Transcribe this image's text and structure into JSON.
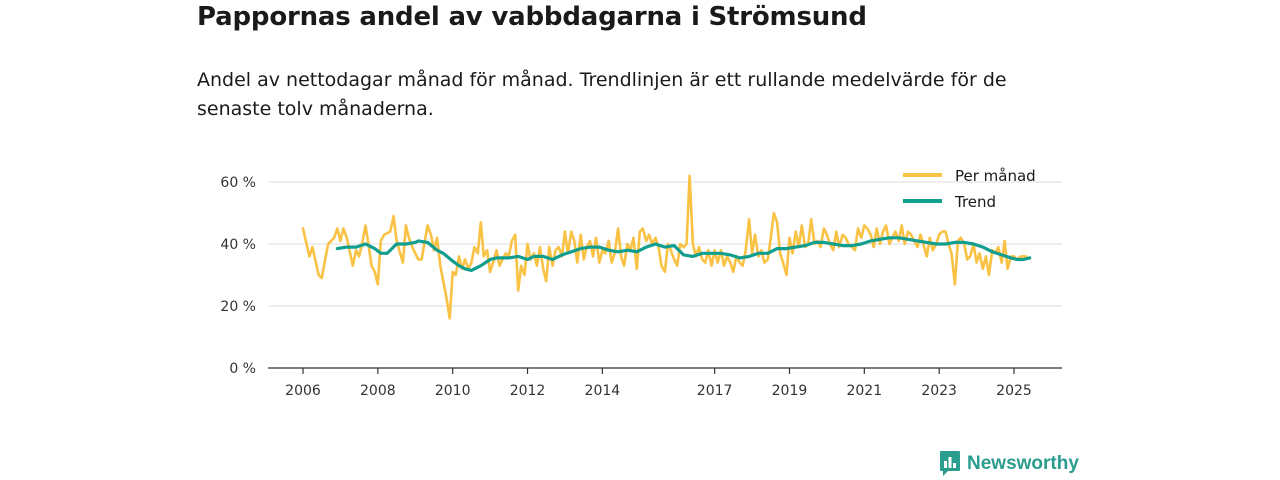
{
  "header": {
    "title": "Pappornas andel av vabbdagarna i Strömsund",
    "subtitle": "Andel av nettodagar månad för månad. Trendlinjen är ett rullande medelvärde för de senaste tolv månaderna."
  },
  "brand": {
    "name": "Newsworthy",
    "icon": "bar-chart-icon",
    "color": "#2a9d8f"
  },
  "chart_data": {
    "type": "line",
    "title": "Pappornas andel av vabbdagarna i Strömsund",
    "xlabel": "",
    "ylabel": "",
    "xlim": [
      2005.5,
      2026.2
    ],
    "ylim": [
      0,
      60
    ],
    "y_ticks": [
      0,
      20,
      40,
      60
    ],
    "y_tick_labels": [
      "0 %",
      "20 %",
      "40 %",
      "60 %"
    ],
    "x_ticks": [
      2006,
      2008,
      2010,
      2012,
      2014,
      2017,
      2019,
      2021,
      2023,
      2025
    ],
    "x_tick_labels": [
      "2006",
      "2008",
      "2010",
      "2012",
      "2014",
      "2017",
      "2019",
      "2021",
      "2023",
      "2025"
    ],
    "grid": true,
    "legend_position": "top-right",
    "series": [
      {
        "name": "Per månad",
        "color": "#f9c244",
        "points": [
          [
            2006.0,
            45
          ],
          [
            2006.17,
            36
          ],
          [
            2006.25,
            39
          ],
          [
            2006.42,
            30
          ],
          [
            2006.5,
            29
          ],
          [
            2006.67,
            40
          ],
          [
            2006.83,
            42
          ],
          [
            2006.92,
            45
          ],
          [
            2007.0,
            41
          ],
          [
            2007.08,
            45
          ],
          [
            2007.17,
            42
          ],
          [
            2007.33,
            33
          ],
          [
            2007.42,
            38
          ],
          [
            2007.5,
            36
          ],
          [
            2007.58,
            40
          ],
          [
            2007.67,
            46
          ],
          [
            2007.75,
            40
          ],
          [
            2007.83,
            33
          ],
          [
            2007.92,
            31
          ],
          [
            2008.0,
            27
          ],
          [
            2008.08,
            41
          ],
          [
            2008.17,
            43
          ],
          [
            2008.33,
            44
          ],
          [
            2008.42,
            49
          ],
          [
            2008.5,
            41
          ],
          [
            2008.67,
            34
          ],
          [
            2008.75,
            46
          ],
          [
            2008.83,
            42
          ],
          [
            2008.92,
            39
          ],
          [
            2009.0,
            37
          ],
          [
            2009.08,
            35
          ],
          [
            2009.17,
            35
          ],
          [
            2009.33,
            46
          ],
          [
            2009.42,
            43
          ],
          [
            2009.5,
            38
          ],
          [
            2009.58,
            42
          ],
          [
            2009.67,
            33
          ],
          [
            2009.75,
            28
          ],
          [
            2009.83,
            23
          ],
          [
            2009.92,
            16
          ],
          [
            2010.0,
            31
          ],
          [
            2010.08,
            30
          ],
          [
            2010.17,
            36
          ],
          [
            2010.25,
            32
          ],
          [
            2010.33,
            35
          ],
          [
            2010.42,
            32
          ],
          [
            2010.5,
            34
          ],
          [
            2010.58,
            39
          ],
          [
            2010.67,
            37
          ],
          [
            2010.75,
            47
          ],
          [
            2010.83,
            36
          ],
          [
            2010.92,
            38
          ],
          [
            2011.0,
            31
          ],
          [
            2011.08,
            34
          ],
          [
            2011.17,
            38
          ],
          [
            2011.25,
            33
          ],
          [
            2011.33,
            35
          ],
          [
            2011.42,
            37
          ],
          [
            2011.5,
            36
          ],
          [
            2011.58,
            41
          ],
          [
            2011.67,
            43
          ],
          [
            2011.75,
            25
          ],
          [
            2011.83,
            33
          ],
          [
            2011.92,
            30
          ],
          [
            2012.0,
            40
          ],
          [
            2012.08,
            35
          ],
          [
            2012.17,
            37
          ],
          [
            2012.25,
            33
          ],
          [
            2012.33,
            39
          ],
          [
            2012.42,
            32
          ],
          [
            2012.5,
            28
          ],
          [
            2012.58,
            39
          ],
          [
            2012.67,
            33
          ],
          [
            2012.75,
            38
          ],
          [
            2012.83,
            39
          ],
          [
            2012.92,
            36
          ],
          [
            2013.0,
            44
          ],
          [
            2013.08,
            37
          ],
          [
            2013.17,
            44
          ],
          [
            2013.25,
            41
          ],
          [
            2013.33,
            34
          ],
          [
            2013.42,
            43
          ],
          [
            2013.5,
            35
          ],
          [
            2013.58,
            39
          ],
          [
            2013.67,
            41
          ],
          [
            2013.75,
            36
          ],
          [
            2013.83,
            42
          ],
          [
            2013.92,
            34
          ],
          [
            2014.0,
            38
          ],
          [
            2014.08,
            37
          ],
          [
            2014.17,
            41
          ],
          [
            2014.25,
            34
          ],
          [
            2014.33,
            37
          ],
          [
            2014.42,
            45
          ],
          [
            2014.5,
            36
          ],
          [
            2014.58,
            33
          ],
          [
            2014.67,
            40
          ],
          [
            2014.75,
            38
          ],
          [
            2014.83,
            42
          ],
          [
            2014.92,
            32
          ],
          [
            2015.0,
            44
          ],
          [
            2015.08,
            45
          ],
          [
            2015.17,
            41
          ],
          [
            2015.25,
            43
          ],
          [
            2015.33,
            40
          ],
          [
            2015.42,
            42
          ],
          [
            2015.5,
            39
          ],
          [
            2015.58,
            33
          ],
          [
            2015.67,
            31
          ],
          [
            2015.75,
            40
          ],
          [
            2015.83,
            38
          ],
          [
            2015.92,
            35
          ],
          [
            2016.0,
            33
          ],
          [
            2016.08,
            40
          ],
          [
            2016.17,
            39
          ],
          [
            2016.25,
            40
          ],
          [
            2016.33,
            62
          ],
          [
            2016.42,
            40
          ],
          [
            2016.5,
            36
          ],
          [
            2016.58,
            39
          ],
          [
            2016.67,
            35
          ],
          [
            2016.75,
            34
          ],
          [
            2016.83,
            38
          ],
          [
            2016.92,
            33
          ],
          [
            2017.0,
            38
          ],
          [
            2017.08,
            34
          ],
          [
            2017.17,
            38
          ],
          [
            2017.25,
            33
          ],
          [
            2017.33,
            36
          ],
          [
            2017.42,
            34
          ],
          [
            2017.5,
            31
          ],
          [
            2017.58,
            36
          ],
          [
            2017.67,
            34
          ],
          [
            2017.75,
            33
          ],
          [
            2017.83,
            38
          ],
          [
            2017.92,
            48
          ],
          [
            2018.0,
            37
          ],
          [
            2018.08,
            43
          ],
          [
            2018.17,
            36
          ],
          [
            2018.25,
            38
          ],
          [
            2018.33,
            34
          ],
          [
            2018.42,
            35
          ],
          [
            2018.5,
            42
          ],
          [
            2018.58,
            50
          ],
          [
            2018.67,
            47
          ],
          [
            2018.75,
            37
          ],
          [
            2018.83,
            34
          ],
          [
            2018.92,
            30
          ],
          [
            2019.0,
            42
          ],
          [
            2019.08,
            37
          ],
          [
            2019.17,
            44
          ],
          [
            2019.25,
            39
          ],
          [
            2019.33,
            46
          ],
          [
            2019.42,
            39
          ],
          [
            2019.5,
            40
          ],
          [
            2019.58,
            48
          ],
          [
            2019.67,
            40
          ],
          [
            2019.75,
            41
          ],
          [
            2019.83,
            39
          ],
          [
            2019.92,
            45
          ],
          [
            2020.0,
            43
          ],
          [
            2020.08,
            40
          ],
          [
            2020.17,
            38
          ],
          [
            2020.25,
            44
          ],
          [
            2020.33,
            39
          ],
          [
            2020.42,
            43
          ],
          [
            2020.5,
            42
          ],
          [
            2020.58,
            40
          ],
          [
            2020.67,
            39
          ],
          [
            2020.75,
            38
          ],
          [
            2020.83,
            45
          ],
          [
            2020.92,
            42
          ],
          [
            2021.0,
            46
          ],
          [
            2021.08,
            45
          ],
          [
            2021.17,
            43
          ],
          [
            2021.25,
            39
          ],
          [
            2021.33,
            45
          ],
          [
            2021.42,
            40
          ],
          [
            2021.5,
            44
          ],
          [
            2021.58,
            46
          ],
          [
            2021.67,
            40
          ],
          [
            2021.75,
            42
          ],
          [
            2021.83,
            44
          ],
          [
            2021.92,
            41
          ],
          [
            2022.0,
            46
          ],
          [
            2022.08,
            40
          ],
          [
            2022.17,
            44
          ],
          [
            2022.25,
            43
          ],
          [
            2022.33,
            41
          ],
          [
            2022.42,
            39
          ],
          [
            2022.5,
            43
          ],
          [
            2022.58,
            40
          ],
          [
            2022.67,
            36
          ],
          [
            2022.75,
            42
          ],
          [
            2022.83,
            38
          ],
          [
            2022.92,
            40
          ],
          [
            2023.0,
            43
          ],
          [
            2023.08,
            44
          ],
          [
            2023.17,
            44
          ],
          [
            2023.25,
            40
          ],
          [
            2023.33,
            37
          ],
          [
            2023.42,
            27
          ],
          [
            2023.5,
            41
          ],
          [
            2023.58,
            42
          ],
          [
            2023.67,
            40
          ],
          [
            2023.75,
            35
          ],
          [
            2023.83,
            36
          ],
          [
            2023.92,
            40
          ],
          [
            2024.0,
            34
          ],
          [
            2024.08,
            37
          ],
          [
            2024.17,
            32
          ],
          [
            2024.25,
            36
          ],
          [
            2024.33,
            30
          ],
          [
            2024.42,
            38
          ],
          [
            2024.5,
            37
          ],
          [
            2024.58,
            39
          ],
          [
            2024.67,
            34
          ],
          [
            2024.75,
            41
          ],
          [
            2024.83,
            32
          ],
          [
            2024.92,
            36
          ],
          [
            2025.0,
            36
          ],
          [
            2025.08,
            35
          ],
          [
            2025.17,
            36
          ],
          [
            2025.25,
            36
          ],
          [
            2025.33,
            36
          ]
        ]
      },
      {
        "name": "Trend",
        "color": "#129e8f",
        "points": [
          [
            2006.92,
            38.5
          ],
          [
            2007.17,
            39
          ],
          [
            2007.42,
            39
          ],
          [
            2007.67,
            40
          ],
          [
            2007.92,
            38.5
          ],
          [
            2008.08,
            37
          ],
          [
            2008.25,
            37
          ],
          [
            2008.5,
            40
          ],
          [
            2008.75,
            40
          ],
          [
            2009.0,
            40.5
          ],
          [
            2009.08,
            41
          ],
          [
            2009.33,
            40.5
          ],
          [
            2009.58,
            38
          ],
          [
            2009.75,
            37
          ],
          [
            2010.0,
            34.5
          ],
          [
            2010.17,
            33
          ],
          [
            2010.33,
            32
          ],
          [
            2010.5,
            31.5
          ],
          [
            2010.75,
            33
          ],
          [
            2011.0,
            35
          ],
          [
            2011.17,
            35.5
          ],
          [
            2011.5,
            35.5
          ],
          [
            2011.75,
            36
          ],
          [
            2012.0,
            35
          ],
          [
            2012.17,
            36
          ],
          [
            2012.42,
            36
          ],
          [
            2012.67,
            35
          ],
          [
            2012.92,
            36.5
          ],
          [
            2013.17,
            37.5
          ],
          [
            2013.42,
            38.5
          ],
          [
            2013.67,
            39
          ],
          [
            2013.92,
            39
          ],
          [
            2014.17,
            38
          ],
          [
            2014.42,
            37.5
          ],
          [
            2014.67,
            38
          ],
          [
            2014.92,
            37.5
          ],
          [
            2015.17,
            39
          ],
          [
            2015.42,
            40
          ],
          [
            2015.67,
            39
          ],
          [
            2015.92,
            39.5
          ],
          [
            2016.17,
            36.5
          ],
          [
            2016.42,
            36
          ],
          [
            2016.67,
            37
          ],
          [
            2016.92,
            37
          ],
          [
            2017.17,
            37
          ],
          [
            2017.42,
            36.5
          ],
          [
            2017.67,
            35.5
          ],
          [
            2017.92,
            36
          ],
          [
            2018.17,
            37
          ],
          [
            2018.42,
            37
          ],
          [
            2018.67,
            38.5
          ],
          [
            2018.92,
            38.5
          ],
          [
            2019.17,
            39
          ],
          [
            2019.42,
            39.5
          ],
          [
            2019.67,
            40.5
          ],
          [
            2019.92,
            40.5
          ],
          [
            2020.17,
            40
          ],
          [
            2020.42,
            39.5
          ],
          [
            2020.67,
            39.5
          ],
          [
            2020.92,
            40
          ],
          [
            2021.17,
            41
          ],
          [
            2021.42,
            41.5
          ],
          [
            2021.67,
            42
          ],
          [
            2021.92,
            42
          ],
          [
            2022.17,
            41.5
          ],
          [
            2022.42,
            41
          ],
          [
            2022.67,
            40.5
          ],
          [
            2022.92,
            40
          ],
          [
            2023.17,
            40
          ],
          [
            2023.42,
            40.5
          ],
          [
            2023.67,
            40.5
          ],
          [
            2023.92,
            40
          ],
          [
            2024.17,
            39
          ],
          [
            2024.42,
            37.5
          ],
          [
            2024.67,
            36.5
          ],
          [
            2024.92,
            35.5
          ],
          [
            2025.08,
            35
          ],
          [
            2025.25,
            35
          ],
          [
            2025.42,
            35.5
          ]
        ]
      }
    ]
  }
}
